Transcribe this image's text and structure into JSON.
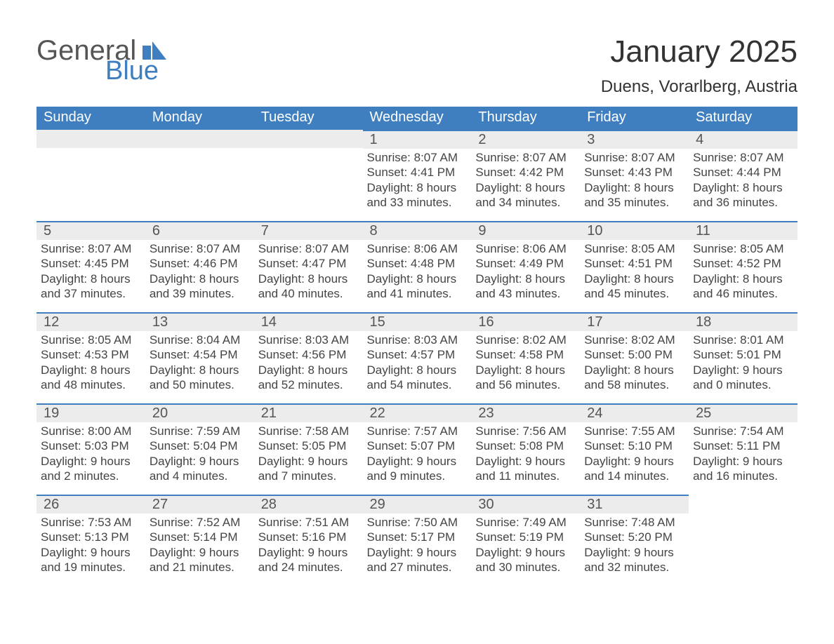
{
  "brand": {
    "part1": "General",
    "part2": "Blue",
    "logo_color": "#3f7fbf"
  },
  "title": "January 2025",
  "subtitle": "Duens, Vorarlberg, Austria",
  "colors": {
    "header_bg": "#3f7fbf",
    "daynum_bg": "#ececec",
    "daynum_border": "#3f7fbf",
    "text": "#333333"
  },
  "weekdays": [
    "Sunday",
    "Monday",
    "Tuesday",
    "Wednesday",
    "Thursday",
    "Friday",
    "Saturday"
  ],
  "labels": {
    "sunrise": "Sunrise",
    "sunset": "Sunset",
    "daylight": "Daylight"
  },
  "weeks": [
    [
      null,
      null,
      null,
      {
        "n": "1",
        "sunrise": "8:07 AM",
        "sunset": "4:41 PM",
        "daylight": "8 hours and 33 minutes."
      },
      {
        "n": "2",
        "sunrise": "8:07 AM",
        "sunset": "4:42 PM",
        "daylight": "8 hours and 34 minutes."
      },
      {
        "n": "3",
        "sunrise": "8:07 AM",
        "sunset": "4:43 PM",
        "daylight": "8 hours and 35 minutes."
      },
      {
        "n": "4",
        "sunrise": "8:07 AM",
        "sunset": "4:44 PM",
        "daylight": "8 hours and 36 minutes."
      }
    ],
    [
      {
        "n": "5",
        "sunrise": "8:07 AM",
        "sunset": "4:45 PM",
        "daylight": "8 hours and 37 minutes."
      },
      {
        "n": "6",
        "sunrise": "8:07 AM",
        "sunset": "4:46 PM",
        "daylight": "8 hours and 39 minutes."
      },
      {
        "n": "7",
        "sunrise": "8:07 AM",
        "sunset": "4:47 PM",
        "daylight": "8 hours and 40 minutes."
      },
      {
        "n": "8",
        "sunrise": "8:06 AM",
        "sunset": "4:48 PM",
        "daylight": "8 hours and 41 minutes."
      },
      {
        "n": "9",
        "sunrise": "8:06 AM",
        "sunset": "4:49 PM",
        "daylight": "8 hours and 43 minutes."
      },
      {
        "n": "10",
        "sunrise": "8:05 AM",
        "sunset": "4:51 PM",
        "daylight": "8 hours and 45 minutes."
      },
      {
        "n": "11",
        "sunrise": "8:05 AM",
        "sunset": "4:52 PM",
        "daylight": "8 hours and 46 minutes."
      }
    ],
    [
      {
        "n": "12",
        "sunrise": "8:05 AM",
        "sunset": "4:53 PM",
        "daylight": "8 hours and 48 minutes."
      },
      {
        "n": "13",
        "sunrise": "8:04 AM",
        "sunset": "4:54 PM",
        "daylight": "8 hours and 50 minutes."
      },
      {
        "n": "14",
        "sunrise": "8:03 AM",
        "sunset": "4:56 PM",
        "daylight": "8 hours and 52 minutes."
      },
      {
        "n": "15",
        "sunrise": "8:03 AM",
        "sunset": "4:57 PM",
        "daylight": "8 hours and 54 minutes."
      },
      {
        "n": "16",
        "sunrise": "8:02 AM",
        "sunset": "4:58 PM",
        "daylight": "8 hours and 56 minutes."
      },
      {
        "n": "17",
        "sunrise": "8:02 AM",
        "sunset": "5:00 PM",
        "daylight": "8 hours and 58 minutes."
      },
      {
        "n": "18",
        "sunrise": "8:01 AM",
        "sunset": "5:01 PM",
        "daylight": "9 hours and 0 minutes."
      }
    ],
    [
      {
        "n": "19",
        "sunrise": "8:00 AM",
        "sunset": "5:03 PM",
        "daylight": "9 hours and 2 minutes."
      },
      {
        "n": "20",
        "sunrise": "7:59 AM",
        "sunset": "5:04 PM",
        "daylight": "9 hours and 4 minutes."
      },
      {
        "n": "21",
        "sunrise": "7:58 AM",
        "sunset": "5:05 PM",
        "daylight": "9 hours and 7 minutes."
      },
      {
        "n": "22",
        "sunrise": "7:57 AM",
        "sunset": "5:07 PM",
        "daylight": "9 hours and 9 minutes."
      },
      {
        "n": "23",
        "sunrise": "7:56 AM",
        "sunset": "5:08 PM",
        "daylight": "9 hours and 11 minutes."
      },
      {
        "n": "24",
        "sunrise": "7:55 AM",
        "sunset": "5:10 PM",
        "daylight": "9 hours and 14 minutes."
      },
      {
        "n": "25",
        "sunrise": "7:54 AM",
        "sunset": "5:11 PM",
        "daylight": "9 hours and 16 minutes."
      }
    ],
    [
      {
        "n": "26",
        "sunrise": "7:53 AM",
        "sunset": "5:13 PM",
        "daylight": "9 hours and 19 minutes."
      },
      {
        "n": "27",
        "sunrise": "7:52 AM",
        "sunset": "5:14 PM",
        "daylight": "9 hours and 21 minutes."
      },
      {
        "n": "28",
        "sunrise": "7:51 AM",
        "sunset": "5:16 PM",
        "daylight": "9 hours and 24 minutes."
      },
      {
        "n": "29",
        "sunrise": "7:50 AM",
        "sunset": "5:17 PM",
        "daylight": "9 hours and 27 minutes."
      },
      {
        "n": "30",
        "sunrise": "7:49 AM",
        "sunset": "5:19 PM",
        "daylight": "9 hours and 30 minutes."
      },
      {
        "n": "31",
        "sunrise": "7:48 AM",
        "sunset": "5:20 PM",
        "daylight": "9 hours and 32 minutes."
      },
      null
    ]
  ]
}
